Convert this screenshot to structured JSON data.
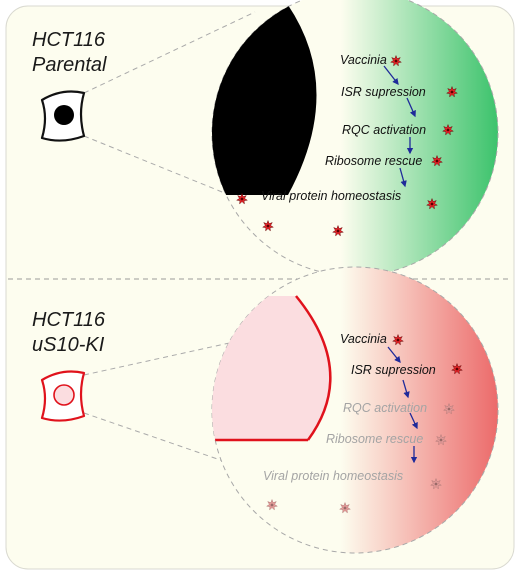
{
  "colors": {
    "panel_bg": "#fdfdef",
    "nucleus_parental": "#000000",
    "nucleus_ki": "#fbdde0",
    "ki_outline": "#e0121c",
    "gradient_parental": "#3cc36c",
    "gradient_ki": "#ec6a6a",
    "arrow": "#1f2a9a",
    "star_active": "#e8262a",
    "star_faded": "#e49a98",
    "text_active": "#111111",
    "text_faded": "#a4a4a4"
  },
  "panels": [
    {
      "title_line1": "HCT116",
      "title_line2": "Parental",
      "steps": [
        {
          "label": "Vaccinia",
          "active": true
        },
        {
          "label": "ISR supression",
          "active": true
        },
        {
          "label": "RQC activation",
          "active": true
        },
        {
          "label": "Ribosome rescue",
          "active": true
        },
        {
          "label": "Viral protein homeostasis",
          "active": true
        }
      ]
    },
    {
      "title_line1": "HCT116",
      "title_line2": "uS10-KI",
      "steps": [
        {
          "label": "Vaccinia",
          "active": true
        },
        {
          "label": "ISR supression",
          "active": true
        },
        {
          "label": "RQC activation",
          "active": false
        },
        {
          "label": "Ribosome rescue",
          "active": false
        },
        {
          "label": "Viral protein homeostasis",
          "active": false
        }
      ]
    }
  ]
}
